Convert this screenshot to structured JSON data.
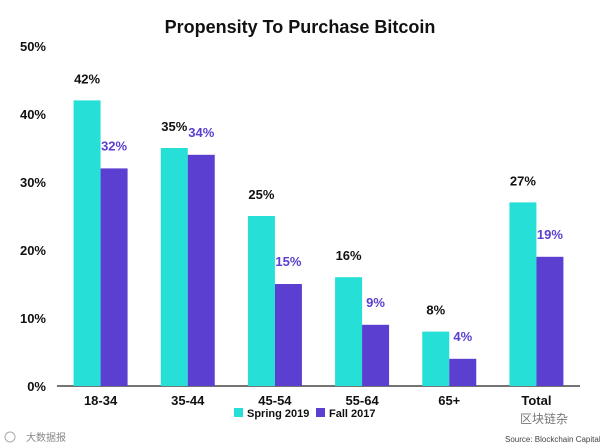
{
  "chart_data": {
    "type": "bar",
    "title": "Propensity To Purchase Bitcoin",
    "xlabel": "",
    "ylabel": "",
    "ylim": [
      0,
      50
    ],
    "yticks": [
      "0%",
      "10%",
      "20%",
      "30%",
      "40%",
      "50%"
    ],
    "grid": false,
    "legend_position": "bottom-center",
    "categories": [
      "18-34",
      "35-44",
      "45-54",
      "55-64",
      "65+",
      "Total"
    ],
    "series": [
      {
        "name": "Spring 2019",
        "color": "#26e0d8",
        "label_color": "#111111",
        "values": [
          42,
          35,
          25,
          16,
          8,
          27
        ],
        "labels": [
          "42%",
          "35%",
          "25%",
          "16%",
          "8%",
          "27%"
        ]
      },
      {
        "name": "Fall 2017",
        "color": "#5a3fd0",
        "label_color": "#5a3fd0",
        "values": [
          32,
          34,
          15,
          9,
          4,
          19
        ],
        "labels": [
          "32%",
          "34%",
          "15%",
          "9%",
          "4%",
          "19%"
        ]
      }
    ]
  },
  "footer": {
    "watermark_left": "大数据报",
    "watermark_right": "区块链杂",
    "source": "Source: Blockchain Capital"
  }
}
